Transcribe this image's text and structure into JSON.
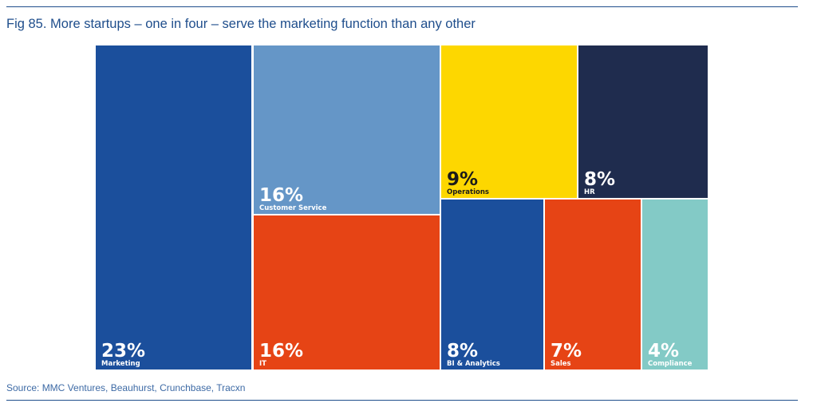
{
  "figure": {
    "title": "Fig 85. More startups – one in four – serve the marketing function than any other",
    "source": "Source: MMC Ventures, Beauhurst, Crunchbase, Tracxn"
  },
  "colors": {
    "rule": "#1f4e8c",
    "title": "#1f4e8c"
  },
  "chart_data": {
    "type": "treemap",
    "value_unit": "%",
    "items": [
      {
        "category": "Marketing",
        "value": 23,
        "label": "23%",
        "color": "#1b4f9c",
        "text_color": "#ffffff"
      },
      {
        "category": "Customer Service",
        "value": 16,
        "label": "16%",
        "color": "#6596c7",
        "text_color": "#ffffff"
      },
      {
        "category": "IT",
        "value": 16,
        "label": "16%",
        "color": "#e64415",
        "text_color": "#ffffff"
      },
      {
        "category": "Operations",
        "value": 9,
        "label": "9%",
        "color": "#fdd700",
        "text_color": "#1a1a1a"
      },
      {
        "category": "HR",
        "value": 8,
        "label": "8%",
        "color": "#1f2c4e",
        "text_color": "#ffffff"
      },
      {
        "category": "BI & Analytics",
        "value": 8,
        "label": "8%",
        "color": "#1b4f9c",
        "text_color": "#ffffff"
      },
      {
        "category": "Sales",
        "value": 7,
        "label": "7%",
        "color": "#e64415",
        "text_color": "#ffffff"
      },
      {
        "category": "Compliance",
        "value": 4,
        "label": "4%",
        "color": "#83cac6",
        "text_color": "#ffffff"
      }
    ]
  }
}
